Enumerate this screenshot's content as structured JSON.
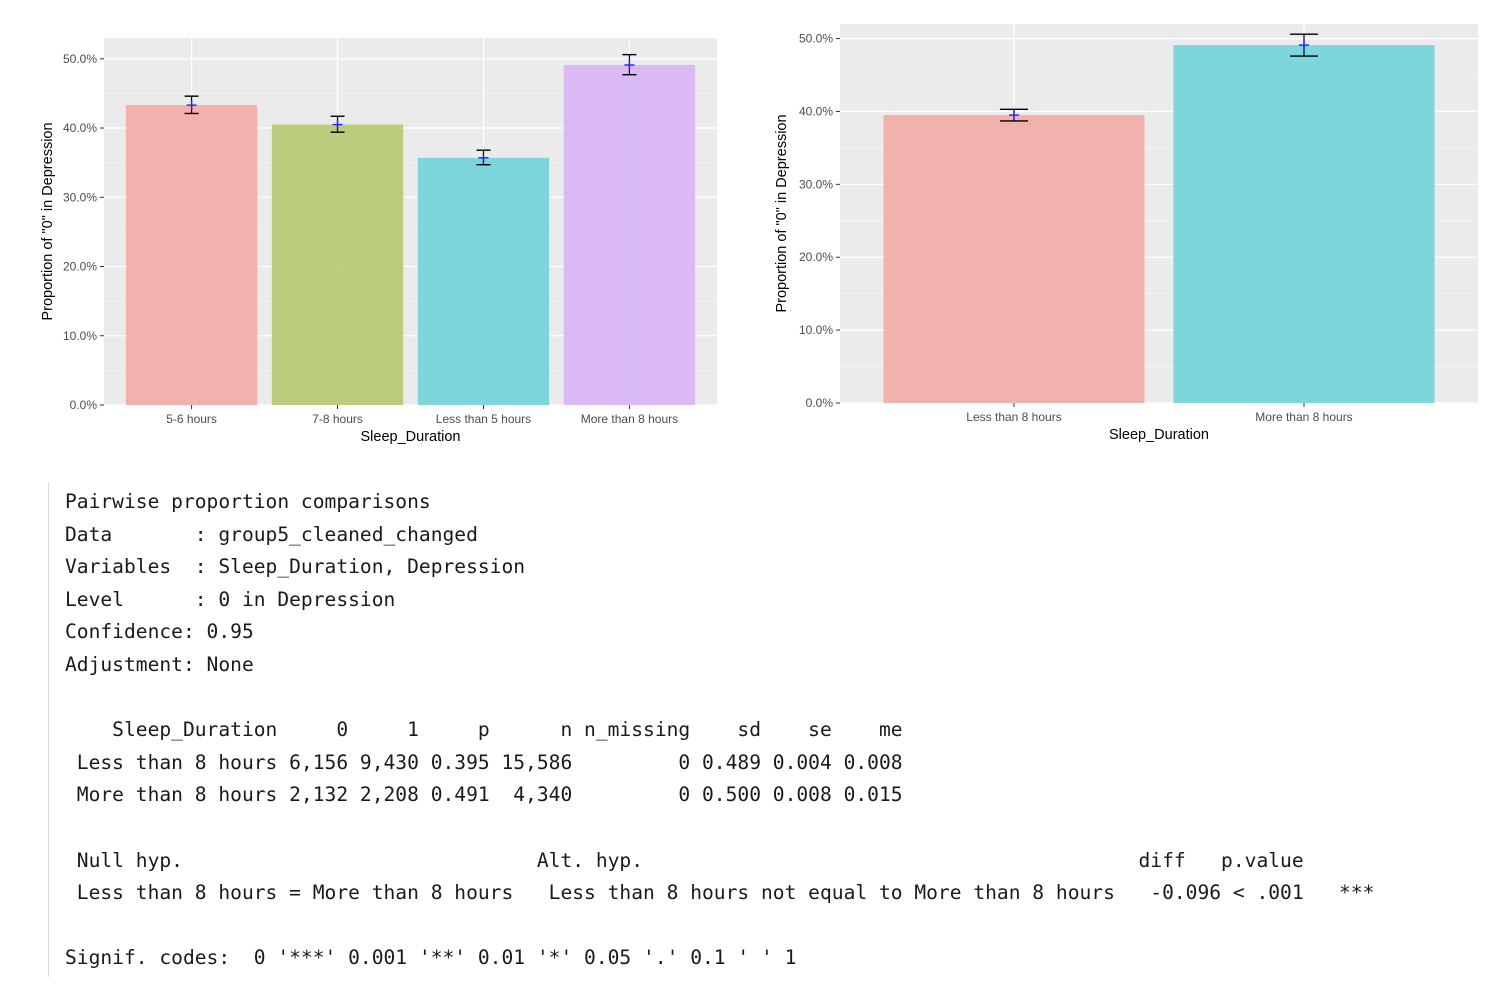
{
  "chart_data": [
    {
      "type": "bar",
      "xlabel": "Sleep_Duration",
      "ylabel": "Proportion of \"0\" in Depression",
      "categories": [
        "5-6 hours",
        "7-8 hours",
        "Less than 5 hours",
        "More than 8 hours"
      ],
      "values": [
        0.433,
        0.405,
        0.357,
        0.491
      ],
      "error_low": [
        0.421,
        0.394,
        0.347,
        0.477
      ],
      "error_high": [
        0.446,
        0.417,
        0.368,
        0.506
      ],
      "colors": [
        "#f1aeaa",
        "#b6cb76",
        "#77d5d8",
        "#d9b6f6"
      ],
      "ylim": [
        0,
        0.53
      ],
      "yticks": [
        0,
        0.1,
        0.2,
        0.3,
        0.4,
        0.5
      ],
      "ytick_labels": [
        "0.0%",
        "10.0%",
        "20.0%",
        "30.0%",
        "40.0%",
        "50.0%"
      ],
      "grid": true
    },
    {
      "type": "bar",
      "xlabel": "Sleep_Duration",
      "ylabel": "Proportion of \"0\" in Depression",
      "categories": [
        "Less than 8 hours",
        "More than 8 hours"
      ],
      "values": [
        0.395,
        0.491
      ],
      "error_low": [
        0.387,
        0.476
      ],
      "error_high": [
        0.403,
        0.506
      ],
      "colors": [
        "#f1aeaa",
        "#77d5d8"
      ],
      "ylim": [
        0,
        0.52
      ],
      "yticks": [
        0,
        0.1,
        0.2,
        0.3,
        0.4,
        0.5
      ],
      "ytick_labels": [
        "0.0%",
        "10.0%",
        "20.0%",
        "30.0%",
        "40.0%",
        "50.0%"
      ],
      "grid": true
    }
  ],
  "console": {
    "lines": [
      "Pairwise proportion comparisons",
      "Data       : group5_cleaned_changed",
      "Variables  : Sleep_Duration, Depression",
      "Level      : 0 in Depression",
      "Confidence: 0.95",
      "Adjustment: None",
      "",
      "    Sleep_Duration     0     1     p      n n_missing    sd    se    me",
      " Less than 8 hours 6,156 9,430 0.395 15,586         0 0.489 0.004 0.008",
      " More than 8 hours 2,132 2,208 0.491  4,340         0 0.500 0.008 0.015",
      "",
      " Null hyp.                              Alt. hyp.                                          diff   p.value",
      " Less than 8 hours = More than 8 hours   Less than 8 hours not equal to More than 8 hours   -0.096 < .001   ***",
      "",
      "Signif. codes:  0 '***' 0.001 '**' 0.01 '*' 0.05 '.' 0.1 ' ' 1"
    ]
  }
}
